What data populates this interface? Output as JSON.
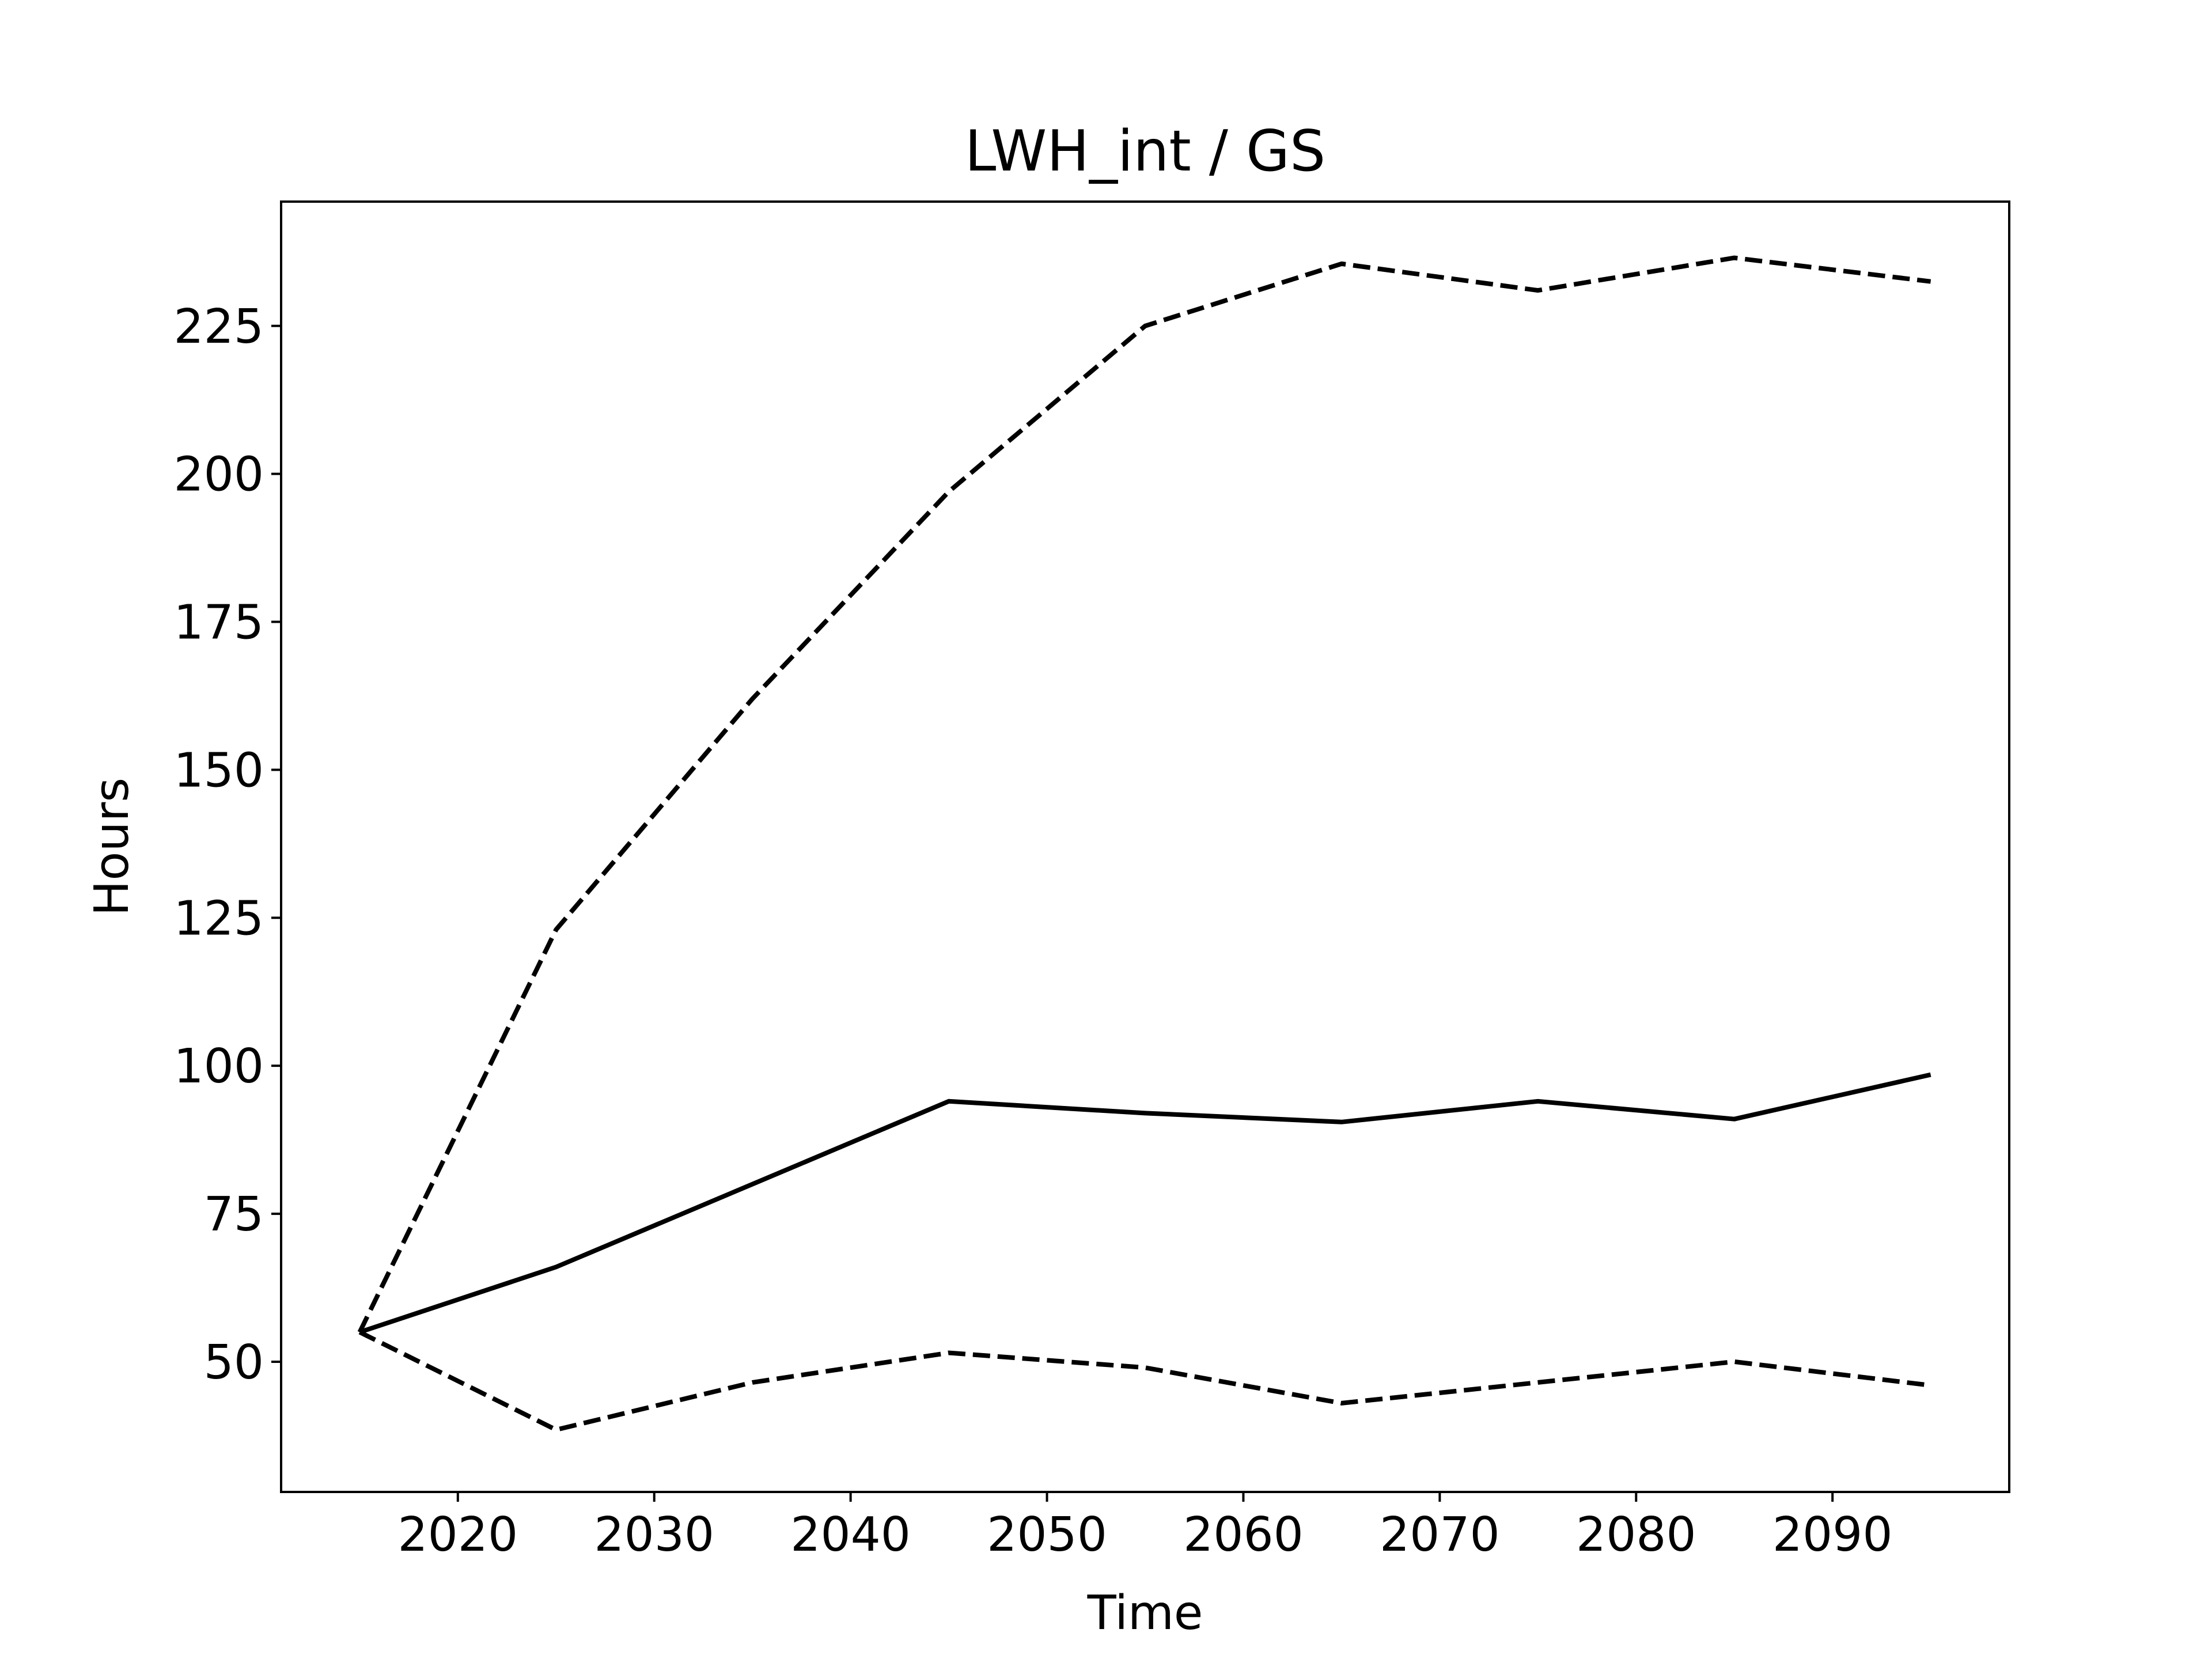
{
  "chart_data": {
    "type": "line",
    "title": "LWH_int / GS",
    "xlabel": "Time",
    "ylabel": "Hours",
    "xlim": [
      2011,
      2099
    ],
    "ylim": [
      28,
      246
    ],
    "xticks": [
      2020,
      2030,
      2040,
      2050,
      2060,
      2070,
      2080,
      2090
    ],
    "yticks": [
      50,
      75,
      100,
      125,
      150,
      175,
      200,
      225
    ],
    "grid": false,
    "line_color": "#000000",
    "x": [
      2015,
      2025,
      2035,
      2045,
      2055,
      2065,
      2075,
      2085,
      2095
    ],
    "series": [
      {
        "style": "solid",
        "values": [
          55,
          66,
          80,
          94,
          92,
          90.5,
          94,
          91,
          98.5
        ]
      },
      {
        "style": "dashed",
        "values": [
          55,
          123,
          162,
          197,
          225,
          235.5,
          231,
          236.5,
          232.5
        ]
      },
      {
        "style": "dashed",
        "values": [
          55,
          38.5,
          46.5,
          51.5,
          49,
          43,
          46.5,
          50,
          46
        ]
      }
    ]
  }
}
